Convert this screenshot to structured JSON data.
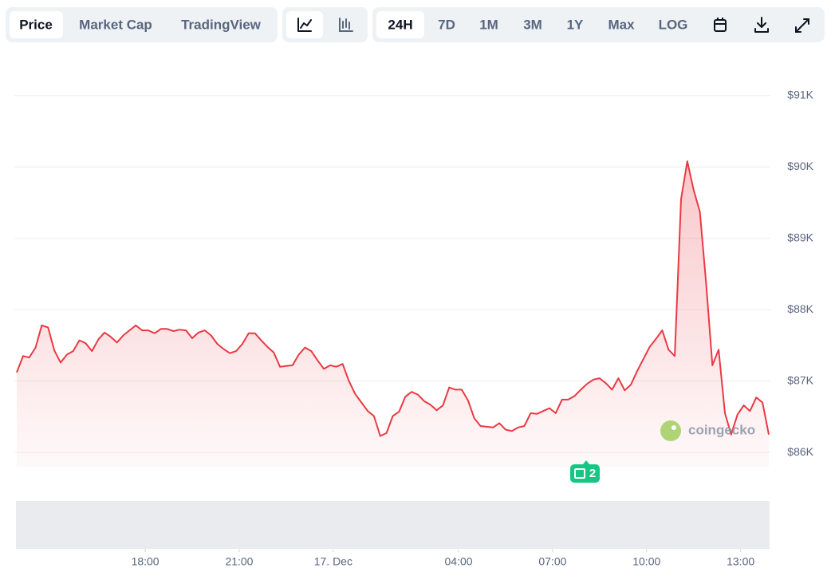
{
  "toolbar": {
    "data_tabs": [
      "Price",
      "Market Cap",
      "TradingView"
    ],
    "ranges": [
      "24H",
      "7D",
      "1M",
      "3M",
      "1Y",
      "Max",
      "LOG"
    ]
  },
  "chart_data": {
    "type": "area",
    "color": "#ea3943",
    "watermark": "coingecko",
    "news_count": 2,
    "x": [
      -10.1,
      -9.9,
      -9.7,
      -9.5,
      -9.3,
      -9.1,
      -8.9,
      -8.7,
      -8.5,
      -8.3,
      -8.1,
      -7.9,
      -7.7,
      -7.5,
      -7.3,
      -7.1,
      -6.9,
      -6.7,
      -6.5,
      -6.3,
      -6.1,
      -5.9,
      -5.7,
      -5.5,
      -5.3,
      -5.1,
      -4.9,
      -4.7,
      -4.5,
      -4.3,
      -4.1,
      -3.9,
      -3.7,
      -3.5,
      -3.3,
      -3.1,
      -2.9,
      -2.7,
      -2.5,
      -2.3,
      -2.1,
      -1.9,
      -1.7,
      -1.5,
      -1.3,
      -1.1,
      -0.9,
      -0.7,
      -0.5,
      -0.3,
      -0.1,
      0.1,
      0.3,
      0.5,
      0.7,
      0.9,
      1.1,
      1.3,
      1.5,
      1.7,
      1.9,
      2.1,
      2.3,
      2.5,
      2.7,
      2.9,
      3.1,
      3.3,
      3.5,
      3.7,
      3.9,
      4.1,
      4.3,
      4.5,
      4.7,
      4.9,
      5.1,
      5.3,
      5.5,
      5.7,
      5.9,
      6.1,
      6.3,
      6.5,
      6.7,
      6.9,
      7.1,
      7.3,
      7.5,
      7.7,
      7.9,
      8.1,
      8.3,
      8.5,
      8.7,
      8.9,
      9.1,
      9.3,
      9.5,
      9.7,
      9.9,
      10.1,
      10.3,
      10.5,
      10.7,
      10.9,
      11.1,
      11.3,
      11.5,
      11.7,
      11.9,
      12.1,
      12.3,
      12.5,
      12.7,
      12.9,
      13.1,
      13.3,
      13.5,
      13.7,
      13.9
    ],
    "values": [
      87120,
      87350,
      87330,
      87470,
      87780,
      87750,
      87430,
      87260,
      87370,
      87420,
      87570,
      87530,
      87420,
      87580,
      87680,
      87620,
      87540,
      87640,
      87710,
      87780,
      87710,
      87710,
      87670,
      87730,
      87730,
      87700,
      87720,
      87710,
      87600,
      87680,
      87710,
      87640,
      87520,
      87450,
      87390,
      87420,
      87520,
      87670,
      87670,
      87570,
      87480,
      87400,
      87200,
      87210,
      87220,
      87370,
      87470,
      87420,
      87290,
      87170,
      87220,
      87200,
      87240,
      87000,
      86820,
      86700,
      86580,
      86510,
      86230,
      86270,
      86510,
      86570,
      86780,
      86850,
      86810,
      86720,
      86670,
      86590,
      86660,
      86910,
      86880,
      86880,
      86730,
      86480,
      86370,
      86360,
      86350,
      86410,
      86320,
      86300,
      86350,
      86370,
      86550,
      86540,
      86580,
      86620,
      86550,
      86740,
      86740,
      86790,
      86880,
      86960,
      87020,
      87040,
      86970,
      86880,
      87040,
      86870,
      86950,
      87140,
      87310,
      87480,
      87590,
      87710,
      87440,
      87350,
      89550,
      90080,
      89680,
      89370,
      88370,
      87220,
      87440,
      86550,
      86250,
      86530,
      86660,
      86580,
      86770,
      86700,
      86250
    ],
    "xlim": [
      -10.1,
      13.9
    ],
    "xticks": [
      {
        "value": -6,
        "label": "18:00"
      },
      {
        "value": -3,
        "label": "21:00"
      },
      {
        "value": 0,
        "label": "17. Dec"
      },
      {
        "value": 4,
        "label": "04:00"
      },
      {
        "value": 7,
        "label": "07:00"
      },
      {
        "value": 10,
        "label": "10:00"
      },
      {
        "value": 13,
        "label": "13:00"
      }
    ],
    "ylim": [
      85800,
      91500
    ],
    "yticks": [
      {
        "value": 86000,
        "label": "$86K"
      },
      {
        "value": 87000,
        "label": "$87K"
      },
      {
        "value": 88000,
        "label": "$88K"
      },
      {
        "value": 89000,
        "label": "$89K"
      },
      {
        "value": 90000,
        "label": "$90K"
      },
      {
        "value": 91000,
        "label": "$91K"
      }
    ],
    "grid": true
  }
}
